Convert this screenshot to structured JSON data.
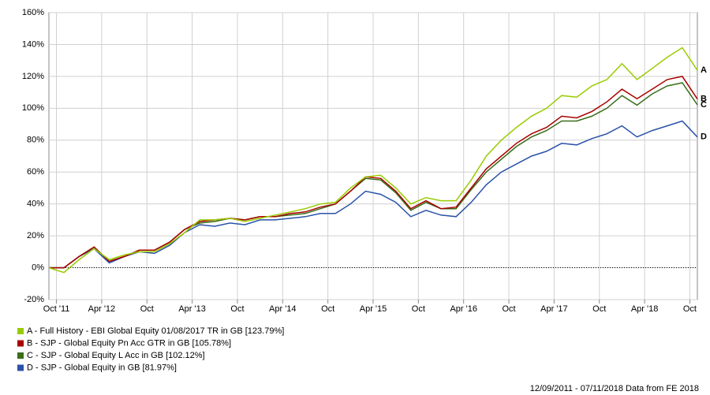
{
  "chart_data": {
    "type": "line",
    "x": [
      "2011-09",
      "2011-11",
      "2012-01",
      "2012-03",
      "2012-05",
      "2012-07",
      "2012-09",
      "2012-11",
      "2013-01",
      "2013-03",
      "2013-05",
      "2013-07",
      "2013-09",
      "2013-11",
      "2014-01",
      "2014-03",
      "2014-05",
      "2014-07",
      "2014-09",
      "2014-11",
      "2015-01",
      "2015-03",
      "2015-05",
      "2015-07",
      "2015-09",
      "2015-11",
      "2016-01",
      "2016-03",
      "2016-05",
      "2016-07",
      "2016-09",
      "2016-11",
      "2017-01",
      "2017-03",
      "2017-05",
      "2017-07",
      "2017-09",
      "2017-11",
      "2018-01",
      "2018-03",
      "2018-05",
      "2018-07",
      "2018-09",
      "2018-11"
    ],
    "xlim": [
      "2011-09",
      "2018-11"
    ],
    "xticks": [
      {
        "value": "2011-10",
        "label": "Oct '11"
      },
      {
        "value": "2012-04",
        "label": "Apr '12"
      },
      {
        "value": "2012-10",
        "label": "Oct"
      },
      {
        "value": "2013-04",
        "label": "Apr '13"
      },
      {
        "value": "2013-10",
        "label": "Oct"
      },
      {
        "value": "2014-04",
        "label": "Apr '14"
      },
      {
        "value": "2014-10",
        "label": "Oct"
      },
      {
        "value": "2015-04",
        "label": "Apr '15"
      },
      {
        "value": "2015-10",
        "label": "Oct"
      },
      {
        "value": "2016-04",
        "label": "Apr '16"
      },
      {
        "value": "2016-10",
        "label": "Oct"
      },
      {
        "value": "2017-04",
        "label": "Apr '17"
      },
      {
        "value": "2017-10",
        "label": "Oct"
      },
      {
        "value": "2018-04",
        "label": "Apr '18"
      },
      {
        "value": "2018-10",
        "label": "Oct"
      }
    ],
    "ylim": [
      -20,
      160
    ],
    "yticks": [
      {
        "value": -20,
        "label": "-20%"
      },
      {
        "value": 0,
        "label": "0%"
      },
      {
        "value": 20,
        "label": "20%"
      },
      {
        "value": 40,
        "label": "40%"
      },
      {
        "value": 60,
        "label": "60%"
      },
      {
        "value": 80,
        "label": "80%"
      },
      {
        "value": 100,
        "label": "100%"
      },
      {
        "value": 120,
        "label": "120%"
      },
      {
        "value": 140,
        "label": "140%"
      },
      {
        "value": 160,
        "label": "160%"
      }
    ],
    "grid": true,
    "series": [
      {
        "name": "A - Full History - EBI Global Equity 01/08/2017 TR in GB [123.79%]",
        "tag": "A",
        "color": "#99cc00",
        "values": [
          0,
          -3,
          5,
          12,
          5,
          8,
          10,
          10,
          15,
          22,
          30,
          30,
          31,
          29,
          31,
          33,
          35,
          37,
          40,
          41,
          50,
          57,
          58,
          50,
          40,
          44,
          42,
          42,
          55,
          70,
          80,
          88,
          95,
          100,
          108,
          107,
          114,
          118,
          128,
          118,
          125,
          132,
          138,
          123.79
        ]
      },
      {
        "name": "B - SJP - Global Equity Pn Acc GTR in GB [105.78%]",
        "tag": "B",
        "color": "#aa0000",
        "values": [
          0,
          0,
          7,
          13,
          4,
          7,
          11,
          11,
          16,
          24,
          29,
          30,
          31,
          30,
          32,
          32,
          34,
          35,
          38,
          40,
          48,
          57,
          56,
          48,
          37,
          42,
          37,
          38,
          50,
          62,
          70,
          78,
          84,
          88,
          95,
          94,
          98,
          104,
          112,
          106,
          112,
          118,
          120,
          105.78
        ]
      },
      {
        "name": "C - SJP - Global Equity L Acc in GB [102.12%]",
        "tag": "C",
        "color": "#3a6e1a",
        "values": [
          0,
          0,
          7,
          13,
          4,
          7,
          11,
          11,
          16,
          24,
          28,
          29,
          31,
          30,
          32,
          32,
          33,
          34,
          37,
          40,
          48,
          56,
          55,
          47,
          36,
          41,
          37,
          37,
          49,
          60,
          68,
          76,
          82,
          86,
          92,
          92,
          95,
          100,
          108,
          102,
          109,
          114,
          116,
          102.12
        ]
      },
      {
        "name": "D - SJP - Global Equity in GB [81.97%]",
        "tag": "D",
        "color": "#2a52a8",
        "values": [
          0,
          0,
          7,
          12,
          3,
          7,
          10,
          9,
          14,
          22,
          27,
          26,
          28,
          27,
          30,
          30,
          31,
          32,
          34,
          34,
          40,
          48,
          46,
          41,
          32,
          36,
          33,
          32,
          41,
          52,
          60,
          65,
          70,
          73,
          78,
          77,
          81,
          84,
          89,
          82,
          86,
          89,
          92,
          81.97
        ]
      }
    ],
    "note": "12/09/2011 - 07/11/2018 Data from FE 2018"
  }
}
